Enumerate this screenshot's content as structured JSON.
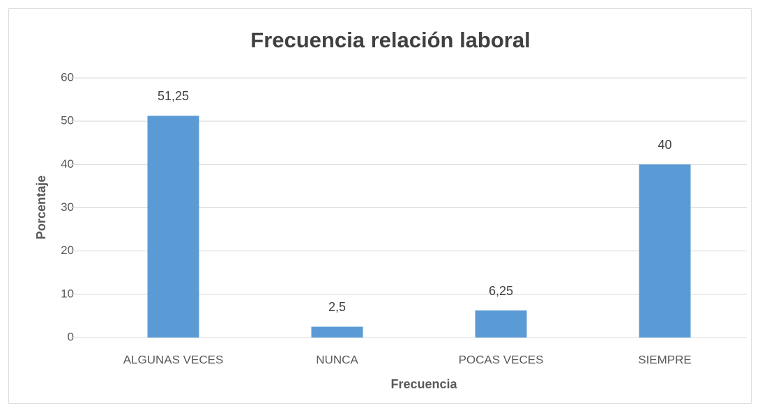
{
  "chart_data": {
    "type": "bar",
    "title": "Frecuencia relación laboral",
    "x_label": "Frecuencia",
    "y_label": "Porcentaje",
    "categories": [
      "ALGUNAS VECES",
      "NUNCA",
      "POCAS VECES",
      "SIEMPRE"
    ],
    "values": [
      51.25,
      2.5,
      6.25,
      40
    ],
    "value_labels": [
      "51,25",
      "2,5",
      "6,25",
      "40"
    ],
    "color": "#5b9bd5",
    "ylim": [
      0,
      60
    ],
    "yticks": [
      0,
      10,
      20,
      30,
      40,
      50,
      60
    ],
    "grid": true
  }
}
